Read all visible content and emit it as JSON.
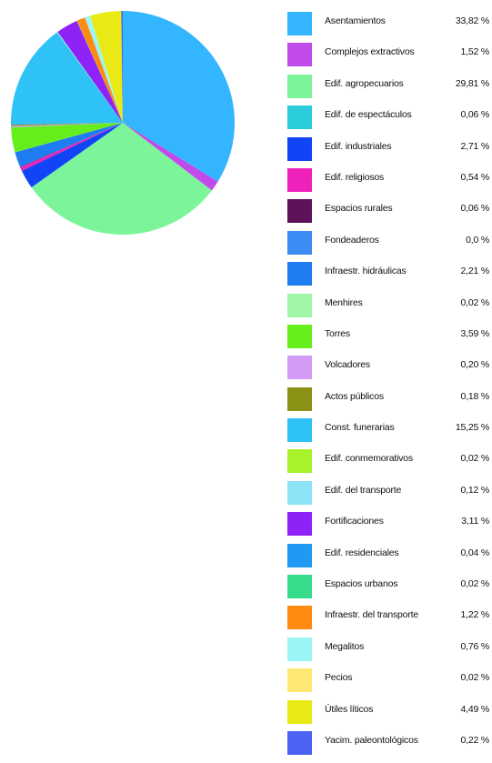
{
  "chart_data": {
    "type": "pie",
    "slices": [
      {
        "label": "Asentamientos",
        "value_text": "33,82 %",
        "value": 33.82,
        "color": "#33B5FF"
      },
      {
        "label": "Complejos extractivos",
        "value_text": "1,52 %",
        "value": 1.52,
        "color": "#C04BEA"
      },
      {
        "label": "Edif. agropecuarios",
        "value_text": "29,81 %",
        "value": 29.81,
        "color": "#7CF59A"
      },
      {
        "label": "Edif. de espectáculos",
        "value_text": "0,06 %",
        "value": 0.06,
        "color": "#2ACBDA"
      },
      {
        "label": "Edif. industriales",
        "value_text": "2,71 %",
        "value": 2.71,
        "color": "#1144F5"
      },
      {
        "label": "Edif. religiosos",
        "value_text": "0,54 %",
        "value": 0.54,
        "color": "#EE22BB"
      },
      {
        "label": "Espacios rurales",
        "value_text": "0,06 %",
        "value": 0.06,
        "color": "#5E1259"
      },
      {
        "label": "Fondeaderos",
        "value_text": "0,0 %",
        "value": 0.0,
        "color": "#3C8CF3"
      },
      {
        "label": "Infraestr. hidráulicas",
        "value_text": "2,21 %",
        "value": 2.21,
        "color": "#1E7DF0"
      },
      {
        "label": "Menhires",
        "value_text": "0,02 %",
        "value": 0.02,
        "color": "#9FF6A7"
      },
      {
        "label": "Torres",
        "value_text": "3,59 %",
        "value": 3.59,
        "color": "#66EE1C"
      },
      {
        "label": "Volcadores",
        "value_text": "0,20 %",
        "value": 0.2,
        "color": "#D39BF5"
      },
      {
        "label": "Actos públicos",
        "value_text": "0,18 %",
        "value": 0.18,
        "color": "#8B9115"
      },
      {
        "label": "Const. funerarias",
        "value_text": "15,25 %",
        "value": 15.25,
        "color": "#2EC2F6"
      },
      {
        "label": "Edif. conmemorativos",
        "value_text": "0,02 %",
        "value": 0.02,
        "color": "#A7F22B"
      },
      {
        "label": "Edif. del transporte",
        "value_text": "0,12 %",
        "value": 0.12,
        "color": "#8CE3F6"
      },
      {
        "label": "Fortificaciones",
        "value_text": "3,11 %",
        "value": 3.11,
        "color": "#8F22F6"
      },
      {
        "label": "Edif. residenciales",
        "value_text": "0,04 %",
        "value": 0.04,
        "color": "#1E9AF2"
      },
      {
        "label": "Espacios urbanos",
        "value_text": "0,02 %",
        "value": 0.02,
        "color": "#36DC8C"
      },
      {
        "label": "Infraestr. del transporte",
        "value_text": "1,22 %",
        "value": 1.22,
        "color": "#FF8A12"
      },
      {
        "label": "Megalitos",
        "value_text": "0,76 %",
        "value": 0.76,
        "color": "#9CF5F5"
      },
      {
        "label": "Pecios",
        "value_text": "0,02 %",
        "value": 0.02,
        "color": "#FFE873"
      },
      {
        "label": "Útiles líticos",
        "value_text": "4,49 %",
        "value": 4.49,
        "color": "#E9EA15"
      },
      {
        "label": "Yacim. paleontológicos",
        "value_text": "0,22 %",
        "value": 0.22,
        "color": "#4B62F2"
      }
    ],
    "legend": "right"
  }
}
